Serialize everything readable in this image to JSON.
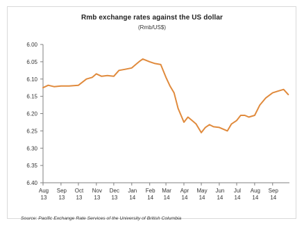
{
  "chart_data": {
    "type": "line",
    "title": "Rmb exchange rates against the US dollar",
    "subtitle": "(Rmb/US$)",
    "source": "Source: Pacific Exchange Rate Services of the University of British Columbia",
    "xlabel": "",
    "ylabel": "",
    "ylim": [
      6.4,
      6.0
    ],
    "y_inverted": true,
    "yticks": [
      "6.00",
      "6.05",
      "6.10",
      "6.15",
      "6.20",
      "6.25",
      "6.30",
      "6.35",
      "6.40"
    ],
    "xticks": [
      {
        "month": "Aug",
        "year": "13"
      },
      {
        "month": "Sep",
        "year": "13"
      },
      {
        "month": "Oct",
        "year": "13"
      },
      {
        "month": "Nov",
        "year": "13"
      },
      {
        "month": "Dec",
        "year": "13"
      },
      {
        "month": "Jan",
        "year": "14"
      },
      {
        "month": "Feb",
        "year": "14"
      },
      {
        "month": "Mar",
        "year": "14"
      },
      {
        "month": "Apr",
        "year": "14"
      },
      {
        "month": "May",
        "year": "14"
      },
      {
        "month": "Jun",
        "year": "14"
      },
      {
        "month": "Jul",
        "year": "14"
      },
      {
        "month": "Aug",
        "year": "14"
      },
      {
        "month": "Sep",
        "year": "14"
      }
    ],
    "grid": false,
    "legend": "none",
    "line_color": "#e08a3c",
    "series": [
      {
        "x": [
          "2013-08-01",
          "2013-08-10",
          "2013-08-20",
          "2013-09-01",
          "2013-09-15",
          "2013-10-01",
          "2013-10-15",
          "2013-10-25",
          "2013-11-01",
          "2013-11-10",
          "2013-11-20",
          "2013-12-01",
          "2013-12-10",
          "2013-12-20",
          "2014-01-01",
          "2014-01-10",
          "2014-01-15",
          "2014-01-20",
          "2014-02-01",
          "2014-02-10",
          "2014-02-20",
          "2014-03-01",
          "2014-03-08",
          "2014-03-15",
          "2014-03-22",
          "2014-04-01",
          "2014-04-08",
          "2014-04-15",
          "2014-04-22",
          "2014-05-01",
          "2014-05-08",
          "2014-05-15",
          "2014-05-22",
          "2014-06-01",
          "2014-06-08",
          "2014-06-15",
          "2014-06-22",
          "2014-07-01",
          "2014-07-08",
          "2014-07-15",
          "2014-07-22",
          "2014-08-01",
          "2014-08-10",
          "2014-08-20",
          "2014-09-01",
          "2014-09-10",
          "2014-09-20",
          "2014-09-28"
        ],
        "values": [
          6.125,
          6.118,
          6.122,
          6.12,
          6.12,
          6.118,
          6.1,
          6.095,
          6.085,
          6.092,
          6.09,
          6.092,
          6.075,
          6.072,
          6.068,
          6.055,
          6.048,
          6.042,
          6.05,
          6.055,
          6.058,
          6.095,
          6.12,
          6.14,
          6.185,
          6.225,
          6.21,
          6.22,
          6.23,
          6.255,
          6.24,
          6.232,
          6.238,
          6.24,
          6.245,
          6.25,
          6.23,
          6.22,
          6.205,
          6.205,
          6.21,
          6.205,
          6.175,
          6.155,
          6.14,
          6.135,
          6.13,
          6.145
        ]
      }
    ]
  }
}
